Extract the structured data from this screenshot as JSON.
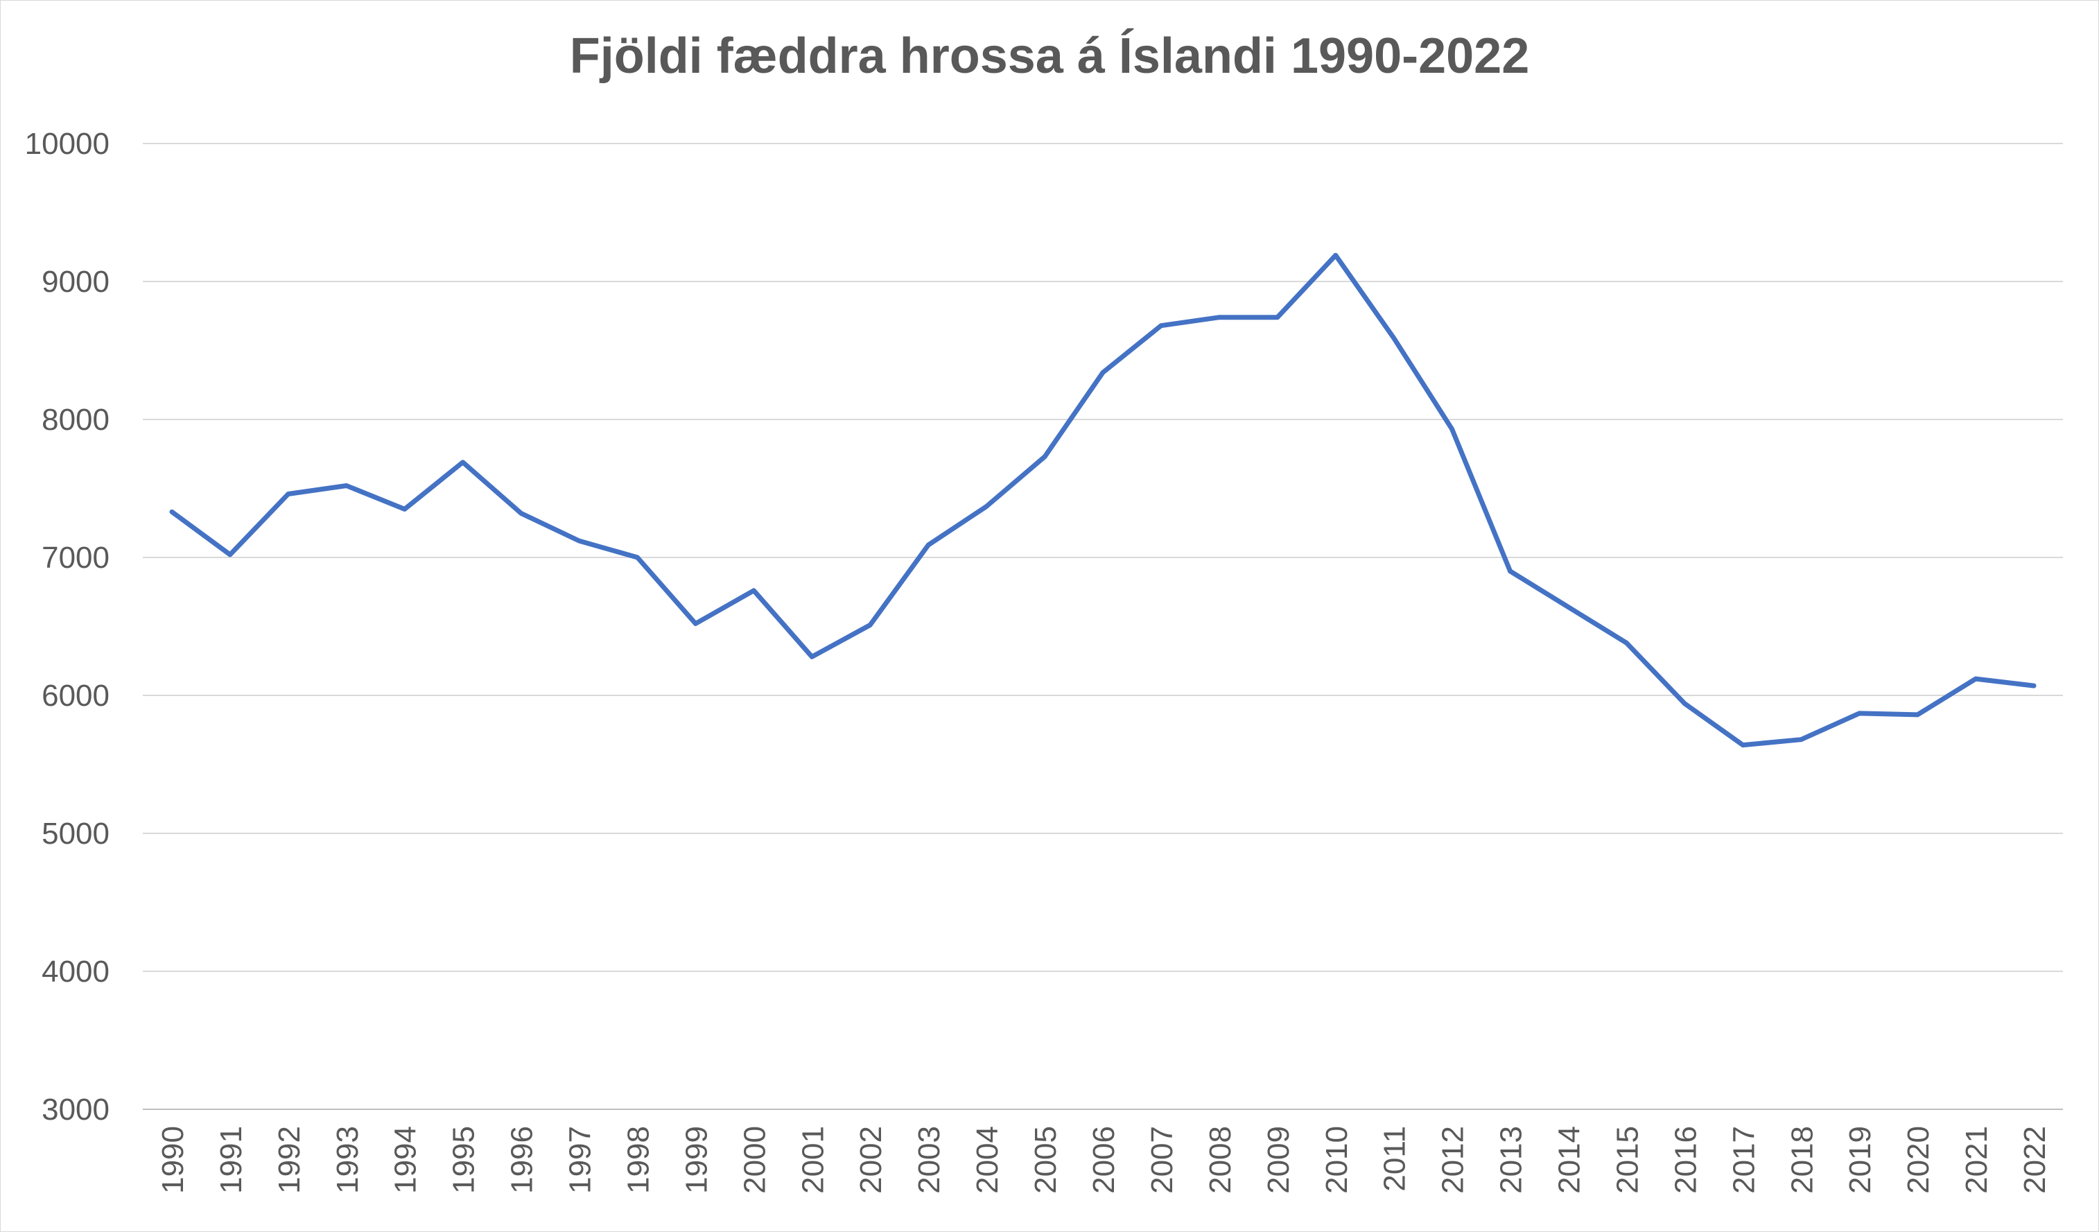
{
  "chart_data": {
    "type": "line",
    "title": "Fjöldi fæddra hrossa á Íslandi 1990-2022",
    "xlabel": "",
    "ylabel": "",
    "ylim": [
      3000,
      10000
    ],
    "yticks": [
      3000,
      4000,
      5000,
      6000,
      7000,
      8000,
      9000,
      10000
    ],
    "grid": true,
    "legend": "none",
    "categories": [
      "1990",
      "1991",
      "1992",
      "1993",
      "1994",
      "1995",
      "1996",
      "1997",
      "1998",
      "1999",
      "2000",
      "2001",
      "2002",
      "2003",
      "2004",
      "2005",
      "2006",
      "2007",
      "2008",
      "2009",
      "2010",
      "2011",
      "2012",
      "2013",
      "2014",
      "2015",
      "2016",
      "2017",
      "2018",
      "2019",
      "2020",
      "2021",
      "2022"
    ],
    "series": [
      {
        "values": [
          7330,
          7020,
          7460,
          7520,
          7350,
          7690,
          7320,
          7120,
          7000,
          6520,
          6760,
          6280,
          6510,
          7090,
          7370,
          7730,
          8340,
          8680,
          8740,
          8740,
          9190,
          8590,
          7930,
          6900,
          6640,
          6380,
          5940,
          5640,
          5680,
          5870,
          5860,
          6120,
          6070
        ]
      }
    ],
    "colors": {
      "line": "#4472c4",
      "grid": "#d9d9d9",
      "text": "#595959",
      "axis": "#bfbfbf"
    }
  }
}
